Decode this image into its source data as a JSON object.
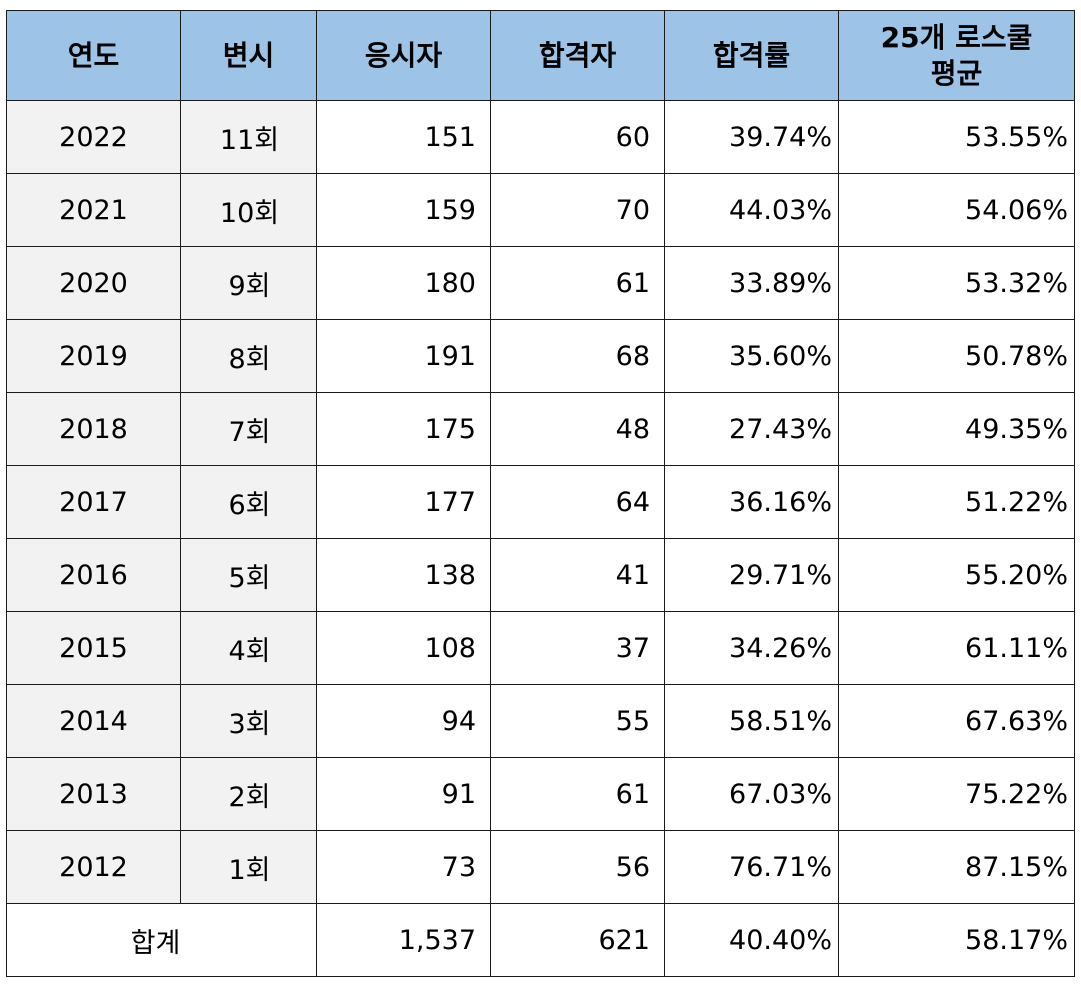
{
  "header": {
    "year": "연도",
    "session": "변시",
    "applicants": "응시자",
    "passed": "합격자",
    "pass_rate": "합격률",
    "avg_line1": "25개 로스쿨",
    "avg_line2": "평균"
  },
  "rows": [
    {
      "year": "2022",
      "session": "11회",
      "applicants": "151",
      "passed": "60",
      "pass_rate": "39.74%",
      "avg": "53.55%"
    },
    {
      "year": "2021",
      "session": "10회",
      "applicants": "159",
      "passed": "70",
      "pass_rate": "44.03%",
      "avg": "54.06%"
    },
    {
      "year": "2020",
      "session": "9회",
      "applicants": "180",
      "passed": "61",
      "pass_rate": "33.89%",
      "avg": "53.32%"
    },
    {
      "year": "2019",
      "session": "8회",
      "applicants": "191",
      "passed": "68",
      "pass_rate": "35.60%",
      "avg": "50.78%"
    },
    {
      "year": "2018",
      "session": "7회",
      "applicants": "175",
      "passed": "48",
      "pass_rate": "27.43%",
      "avg": "49.35%"
    },
    {
      "year": "2017",
      "session": "6회",
      "applicants": "177",
      "passed": "64",
      "pass_rate": "36.16%",
      "avg": "51.22%"
    },
    {
      "year": "2016",
      "session": "5회",
      "applicants": "138",
      "passed": "41",
      "pass_rate": "29.71%",
      "avg": "55.20%"
    },
    {
      "year": "2015",
      "session": "4회",
      "applicants": "108",
      "passed": "37",
      "pass_rate": "34.26%",
      "avg": "61.11%"
    },
    {
      "year": "2014",
      "session": "3회",
      "applicants": "94",
      "passed": "55",
      "pass_rate": "58.51%",
      "avg": "67.63%"
    },
    {
      "year": "2013",
      "session": "2회",
      "applicants": "91",
      "passed": "61",
      "pass_rate": "67.03%",
      "avg": "75.22%"
    },
    {
      "year": "2012",
      "session": "1회",
      "applicants": "73",
      "passed": "56",
      "pass_rate": "76.71%",
      "avg": "87.15%"
    }
  ],
  "total": {
    "label": "합계",
    "applicants": "1,537",
    "passed": "621",
    "pass_rate": "40.40%",
    "avg": "58.17%"
  },
  "colors": {
    "header_bg": "#9dc3e6",
    "label_bg": "#f2f2f2",
    "border": "#1a1a1a"
  }
}
